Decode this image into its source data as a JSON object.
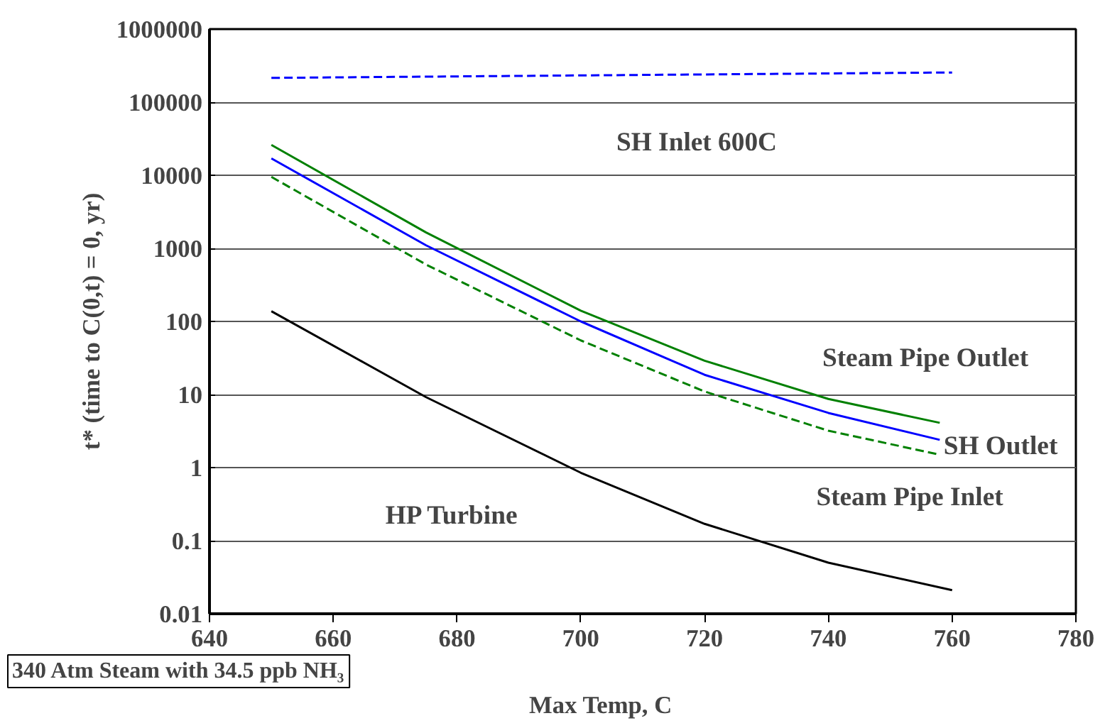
{
  "chart_data": {
    "type": "line",
    "xlabel": "Max Temp, C",
    "ylabel": "t* (time to C(0,t) = 0, yr)",
    "log": "y",
    "grid": "y",
    "marker": "none",
    "xlim": [
      640,
      780
    ],
    "xticks": [
      640,
      660,
      680,
      700,
      720,
      740,
      760,
      780
    ],
    "ylim": [
      0.01,
      1000000
    ],
    "yticks": [
      0.01,
      0.1,
      1,
      10,
      100,
      1000,
      10000,
      100000,
      1000000
    ],
    "series": [
      {
        "color": "#0000ff",
        "line_style": "dashed",
        "x": [
          650,
          760
        ],
        "values": [
          215000,
          255000
        ]
      },
      {
        "color": "#008000",
        "line_style": "solid",
        "x": [
          650,
          675,
          700,
          720,
          740,
          758
        ],
        "values": [
          26000,
          1650,
          140,
          29,
          8.7,
          4.1
        ]
      },
      {
        "color": "#0000ff",
        "line_style": "solid",
        "x": [
          650,
          675,
          700,
          720,
          740,
          758
        ],
        "values": [
          17000,
          1100,
          100,
          18.6,
          5.6,
          2.4
        ]
      },
      {
        "color": "#008000",
        "line_style": "dashed",
        "x": [
          650,
          675,
          700,
          720,
          740,
          758
        ],
        "values": [
          9500,
          600,
          55,
          11,
          3.2,
          1.5
        ]
      },
      {
        "color": "#000000",
        "line_style": "solid",
        "x": [
          650,
          675,
          700,
          720,
          740,
          760
        ],
        "values": [
          138,
          9.2,
          0.85,
          0.17,
          0.05,
          0.021
        ]
      }
    ],
    "annotations": [
      "SH Inlet 600C",
      "Steam Pipe Outlet",
      "SH Outlet",
      "Steam Pipe Inlet",
      "HP Turbine",
      "340 Atm Steam with 34.5 ppb NH₃"
    ]
  }
}
